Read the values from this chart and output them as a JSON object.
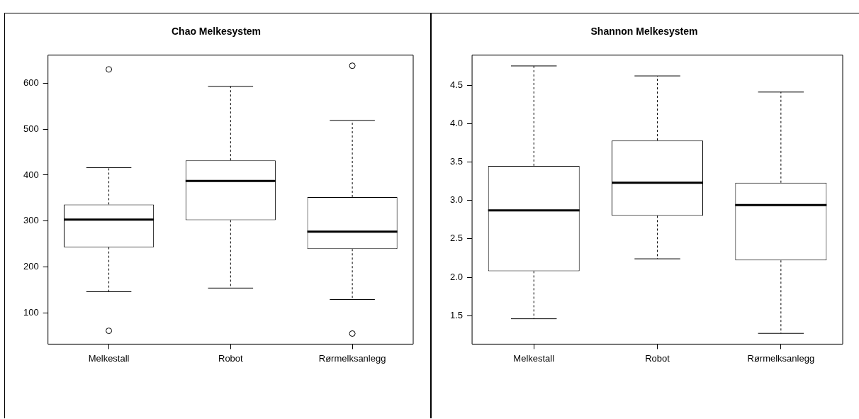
{
  "chart_data": [
    {
      "type": "box",
      "title": "Chao Melkesystem",
      "categories": [
        "Melkestall",
        "Robot",
        "Rørmelksanlegg"
      ],
      "boxes": [
        {
          "low": 146,
          "q1": 243,
          "median": 303,
          "q3": 336,
          "high": 416,
          "outliers": [
            630,
            61
          ]
        },
        {
          "low": 154,
          "q1": 302,
          "median": 387,
          "q3": 432,
          "high": 593
        },
        {
          "low": 129,
          "q1": 239,
          "median": 277,
          "q3": 352,
          "high": 519,
          "outliers": [
            638,
            55
          ]
        }
      ],
      "ylim": [
        32,
        661
      ],
      "yticks": [
        100,
        200,
        300,
        400,
        500,
        600
      ]
    },
    {
      "type": "box",
      "title": "Shannon Melkesystem",
      "categories": [
        "Melkestall",
        "Robot",
        "Rørmelksanlegg"
      ],
      "boxes": [
        {
          "low": 1.46,
          "q1": 2.08,
          "median": 2.87,
          "q3": 3.45,
          "high": 4.75
        },
        {
          "low": 2.24,
          "q1": 2.8,
          "median": 3.23,
          "q3": 3.78,
          "high": 4.62
        },
        {
          "low": 1.27,
          "q1": 2.22,
          "median": 2.94,
          "q3": 3.23,
          "high": 4.41
        }
      ],
      "ylim": [
        1.13,
        4.89
      ],
      "yticks": [
        {
          "value": 1.5,
          "label": "1.5"
        },
        {
          "value": 2,
          "label": "2.0"
        },
        {
          "value": 2.5,
          "label": "2.5"
        },
        {
          "value": 3,
          "label": "3.0"
        },
        {
          "value": 3.5,
          "label": "3.5"
        },
        {
          "value": 4,
          "label": "4.0"
        },
        {
          "value": 4.5,
          "label": "4.5"
        }
      ]
    }
  ]
}
